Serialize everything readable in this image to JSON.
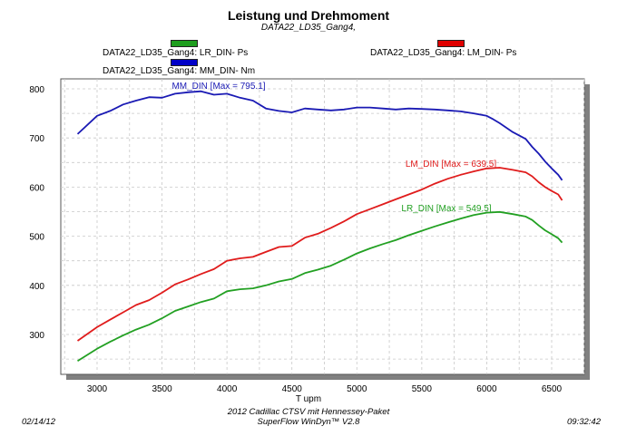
{
  "chart_data": {
    "type": "line",
    "title": "Leistung und Drehmoment",
    "subtitle": "DATA22_LD35_Gang4,",
    "xlabel": "T      upm",
    "ylabel": "",
    "xlim": [
      2700,
      6800
    ],
    "ylim": [
      220,
      820
    ],
    "xticks": [
      3000,
      3500,
      4000,
      4500,
      5000,
      5500,
      6000,
      6500
    ],
    "yticks": [
      300,
      400,
      500,
      600,
      700,
      800
    ],
    "grid": true,
    "legend": [
      {
        "label": "DATA22_LD35_Gang4: LR_DIN-  Ps",
        "color": "#1e9e1e"
      },
      {
        "label": "DATA22_LD35_Gang4: MM_DIN-  Nm",
        "color": "#0000c8"
      },
      {
        "label": "DATA22_LD35_Gang4: LM_DIN-  Ps",
        "color": "#e00000"
      }
    ],
    "series": [
      {
        "name": "MM_DIN",
        "unit": "Nm",
        "color": "#1a1ab4",
        "annotation": "MM_DIN [Max = 795.1]",
        "x": [
          2850,
          3000,
          3100,
          3200,
          3300,
          3400,
          3500,
          3600,
          3700,
          3800,
          3900,
          4000,
          4100,
          4200,
          4300,
          4400,
          4500,
          4600,
          4700,
          4800,
          4900,
          5000,
          5100,
          5200,
          5300,
          5400,
          5500,
          5600,
          5700,
          5800,
          5900,
          6000,
          6050,
          6100,
          6200,
          6300,
          6350,
          6400,
          6450,
          6500,
          6550,
          6580
        ],
        "y": [
          708,
          745,
          755,
          768,
          776,
          783,
          782,
          790,
          793,
          795,
          788,
          790,
          782,
          776,
          760,
          755,
          752,
          760,
          758,
          756,
          758,
          762,
          762,
          760,
          758,
          760,
          759,
          758,
          756,
          754,
          750,
          745,
          738,
          730,
          712,
          698,
          682,
          668,
          652,
          638,
          625,
          614
        ]
      },
      {
        "name": "LM_DIN",
        "unit": "Ps",
        "color": "#e01c1c",
        "annotation": "LM_DIN [Max = 639.5]",
        "x": [
          2850,
          3000,
          3100,
          3200,
          3300,
          3400,
          3500,
          3600,
          3700,
          3800,
          3900,
          4000,
          4100,
          4200,
          4300,
          4400,
          4500,
          4600,
          4700,
          4800,
          4900,
          5000,
          5100,
          5200,
          5300,
          5400,
          5500,
          5600,
          5700,
          5800,
          5900,
          6000,
          6100,
          6200,
          6300,
          6350,
          6400,
          6450,
          6500,
          6550,
          6580
        ],
        "y": [
          287,
          315,
          330,
          345,
          360,
          370,
          385,
          402,
          412,
          423,
          433,
          450,
          455,
          458,
          468,
          478,
          480,
          497,
          505,
          517,
          530,
          545,
          555,
          565,
          575,
          585,
          595,
          607,
          617,
          625,
          632,
          638,
          639.5,
          635,
          630,
          622,
          610,
          600,
          592,
          585,
          573
        ]
      },
      {
        "name": "LR_DIN",
        "unit": "Ps",
        "color": "#22a022",
        "annotation": "LR_DIN [Max = 549.5]",
        "x": [
          2850,
          3000,
          3100,
          3200,
          3300,
          3400,
          3500,
          3600,
          3700,
          3800,
          3900,
          4000,
          4100,
          4200,
          4300,
          4400,
          4500,
          4600,
          4700,
          4800,
          4900,
          5000,
          5100,
          5200,
          5300,
          5400,
          5500,
          5600,
          5700,
          5800,
          5900,
          6000,
          6100,
          6200,
          6300,
          6350,
          6400,
          6450,
          6500,
          6550,
          6580
        ],
        "y": [
          246,
          271,
          285,
          298,
          310,
          320,
          333,
          348,
          357,
          366,
          373,
          388,
          392,
          394,
          400,
          408,
          413,
          425,
          432,
          440,
          452,
          465,
          475,
          484,
          492,
          502,
          511,
          520,
          528,
          536,
          543,
          548,
          549.5,
          545,
          540,
          533,
          522,
          512,
          504,
          496,
          487
        ]
      }
    ]
  },
  "footer": {
    "date": "02/14/12",
    "caption_line1": "2012 Cadillac CTSV mit Hennessey-Paket",
    "caption_line2": "SuperFlow WinDyn™ V2.8",
    "time": "09:32:42"
  }
}
